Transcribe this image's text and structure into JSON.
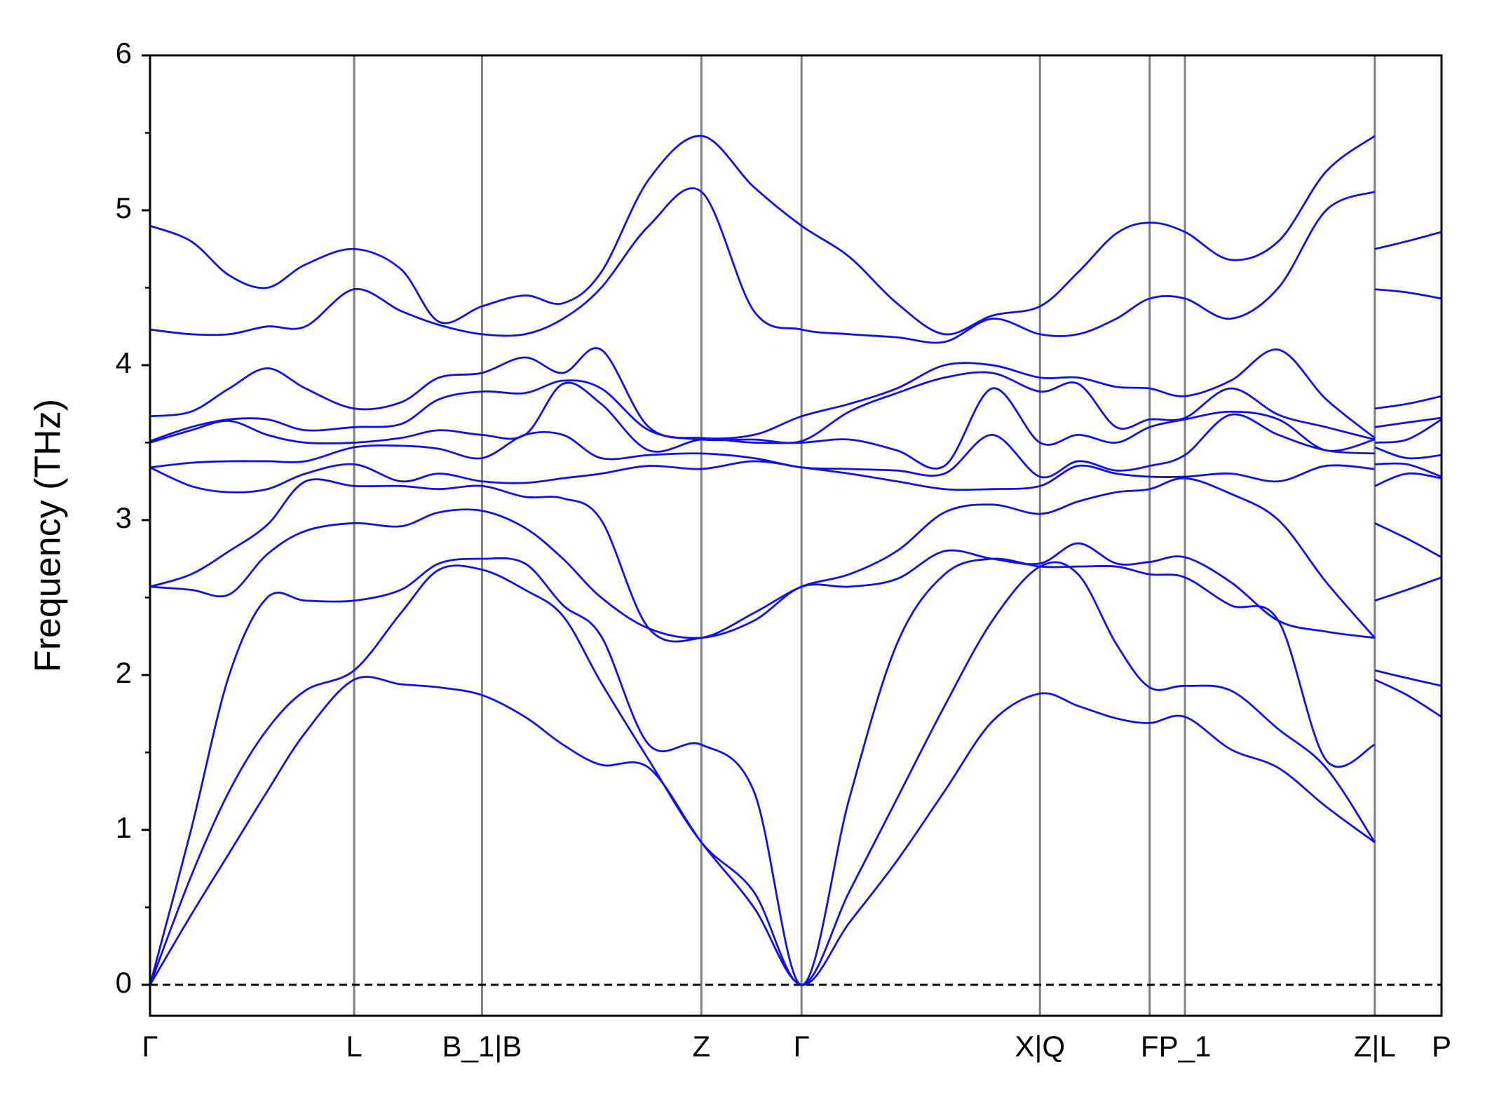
{
  "chart_data": {
    "type": "line",
    "y_label": "Frequency (THz)",
    "color": "#1010e8",
    "xlim": [
      0,
      1.354
    ],
    "ylim": [
      -0.2,
      6
    ],
    "xticks": [
      {
        "value": 0,
        "label": "Γ"
      },
      {
        "value": 0.214,
        "label": "L"
      },
      {
        "value": 0.348,
        "label": "B_1|B"
      },
      {
        "value": 0.578,
        "label": "Z"
      },
      {
        "value": 0.683,
        "label": "Γ"
      },
      {
        "value": 0.933,
        "label": "X|Q"
      },
      {
        "value": 1.048,
        "label": "F"
      },
      {
        "value": 1.085,
        "label": "P_1"
      },
      {
        "value": 1.284,
        "label": "Z|L"
      },
      {
        "value": 1.354,
        "label": "P"
      }
    ],
    "yticks": [
      0,
      1,
      2,
      3,
      4,
      5,
      6
    ],
    "yminor_ticks": [
      0.5,
      1.5,
      2.5,
      3.5,
      4.5,
      5.5
    ],
    "vertical_grid": true,
    "hline": 0,
    "x": [
      0,
      0.043,
      0.083,
      0.123,
      0.163,
      0.214,
      0.263,
      0.303,
      0.348,
      0.393,
      0.433,
      0.473,
      0.523,
      0.578,
      0.633,
      0.683,
      0.733,
      0.783,
      0.833,
      0.883,
      0.933,
      0.973,
      1.013,
      1.048,
      1.085,
      1.133,
      1.183,
      1.233,
      1.284,
      1.284,
      1.284,
      1.318,
      1.354
    ],
    "series": [
      {
        "values": [
          0,
          0.45,
          0.85,
          1.25,
          1.63,
          1.97,
          1.94,
          1.92,
          1.87,
          1.73,
          1.55,
          1.42,
          1.4,
          0.92,
          0.5,
          0,
          0.4,
          0.8,
          1.25,
          1.7,
          1.88,
          1.8,
          1.72,
          1.69,
          1.73,
          1.52,
          1.4,
          1.15,
          0.92,
          null,
          1.97,
          1.87,
          1.73
        ]
      },
      {
        "values": [
          0,
          0.7,
          1.25,
          1.65,
          1.9,
          2.03,
          2.4,
          2.68,
          2.68,
          2.55,
          2.38,
          1.95,
          1.45,
          0.92,
          0.6,
          0,
          0.6,
          1.2,
          1.8,
          2.35,
          2.7,
          2.65,
          2.2,
          1.92,
          1.93,
          1.9,
          1.65,
          1.4,
          0.92,
          null,
          2.03,
          1.98,
          1.93
        ]
      },
      {
        "values": [
          0,
          1.0,
          2.0,
          2.5,
          2.48,
          2.48,
          2.55,
          2.72,
          2.75,
          2.72,
          2.45,
          2.25,
          1.55,
          1.55,
          1.25,
          0,
          1.2,
          2.2,
          2.65,
          2.75,
          2.7,
          2.7,
          2.7,
          2.65,
          2.63,
          2.45,
          2.35,
          1.45,
          1.55,
          null,
          2.48,
          2.55,
          2.63
        ]
      },
      {
        "values": [
          2.57,
          2.55,
          2.52,
          2.78,
          2.93,
          2.98,
          2.96,
          3.05,
          3.06,
          2.95,
          2.75,
          2.5,
          2.3,
          2.24,
          2.35,
          2.57,
          2.57,
          2.62,
          2.8,
          2.75,
          2.72,
          2.85,
          2.72,
          2.73,
          2.76,
          2.6,
          2.35,
          2.28,
          2.24,
          null,
          2.98,
          2.88,
          2.76
        ]
      },
      {
        "values": [
          2.57,
          2.65,
          2.8,
          2.97,
          3.25,
          3.22,
          3.22,
          3.2,
          3.22,
          3.15,
          3.14,
          3.0,
          2.3,
          2.24,
          2.4,
          2.57,
          2.65,
          2.8,
          3.05,
          3.1,
          3.04,
          3.12,
          3.18,
          3.2,
          3.27,
          3.17,
          3.0,
          2.6,
          2.24,
          null,
          3.22,
          3.3,
          3.27
        ]
      },
      {
        "values": [
          3.34,
          3.22,
          3.18,
          3.2,
          3.3,
          3.36,
          3.25,
          3.3,
          3.25,
          3.24,
          3.27,
          3.3,
          3.35,
          3.33,
          3.38,
          3.34,
          3.3,
          3.25,
          3.2,
          3.2,
          3.22,
          3.35,
          3.3,
          3.28,
          3.28,
          3.3,
          3.25,
          3.35,
          3.33,
          null,
          3.36,
          3.36,
          3.28
        ]
      },
      {
        "values": [
          3.34,
          3.37,
          3.38,
          3.38,
          3.38,
          3.47,
          3.48,
          3.46,
          3.4,
          3.55,
          3.55,
          3.4,
          3.42,
          3.43,
          3.4,
          3.34,
          3.33,
          3.32,
          3.3,
          3.55,
          3.28,
          3.38,
          3.32,
          3.35,
          3.42,
          3.68,
          3.55,
          3.45,
          3.43,
          null,
          3.47,
          3.4,
          3.42
        ]
      },
      {
        "values": [
          3.5,
          3.58,
          3.64,
          3.55,
          3.5,
          3.5,
          3.53,
          3.58,
          3.55,
          3.55,
          3.88,
          3.75,
          3.45,
          3.52,
          3.5,
          3.5,
          3.52,
          3.45,
          3.35,
          3.85,
          3.5,
          3.55,
          3.5,
          3.6,
          3.65,
          3.7,
          3.65,
          3.45,
          3.52,
          null,
          3.5,
          3.52,
          3.65
        ]
      },
      {
        "values": [
          3.51,
          3.6,
          3.65,
          3.65,
          3.58,
          3.6,
          3.62,
          3.78,
          3.83,
          3.82,
          3.9,
          3.85,
          3.58,
          3.52,
          3.52,
          3.51,
          3.7,
          3.82,
          3.92,
          3.95,
          3.83,
          3.88,
          3.6,
          3.65,
          3.66,
          3.85,
          3.68,
          3.6,
          3.52,
          null,
          3.6,
          3.63,
          3.66
        ]
      },
      {
        "values": [
          3.67,
          3.7,
          3.85,
          3.98,
          3.85,
          3.72,
          3.76,
          3.92,
          3.95,
          4.05,
          3.95,
          4.1,
          3.6,
          3.53,
          3.55,
          3.67,
          3.75,
          3.85,
          4.0,
          4.0,
          3.92,
          3.92,
          3.86,
          3.85,
          3.8,
          3.9,
          4.1,
          3.78,
          3.53,
          null,
          3.72,
          3.75,
          3.8
        ]
      },
      {
        "values": [
          4.23,
          4.2,
          4.2,
          4.25,
          4.25,
          4.49,
          4.35,
          4.26,
          4.2,
          4.2,
          4.3,
          4.5,
          4.9,
          5.12,
          4.35,
          4.23,
          4.2,
          4.18,
          4.15,
          4.3,
          4.2,
          4.2,
          4.3,
          4.43,
          4.43,
          4.3,
          4.5,
          5.0,
          5.12,
          null,
          4.49,
          4.47,
          4.43
        ]
      },
      {
        "values": [
          4.9,
          4.8,
          4.58,
          4.5,
          4.65,
          4.75,
          4.62,
          4.28,
          4.38,
          4.45,
          4.4,
          4.6,
          5.2,
          5.48,
          5.15,
          4.9,
          4.7,
          4.4,
          4.2,
          4.32,
          4.38,
          4.6,
          4.85,
          4.92,
          4.86,
          4.68,
          4.8,
          5.25,
          5.48,
          null,
          4.75,
          4.8,
          4.86
        ]
      }
    ]
  }
}
